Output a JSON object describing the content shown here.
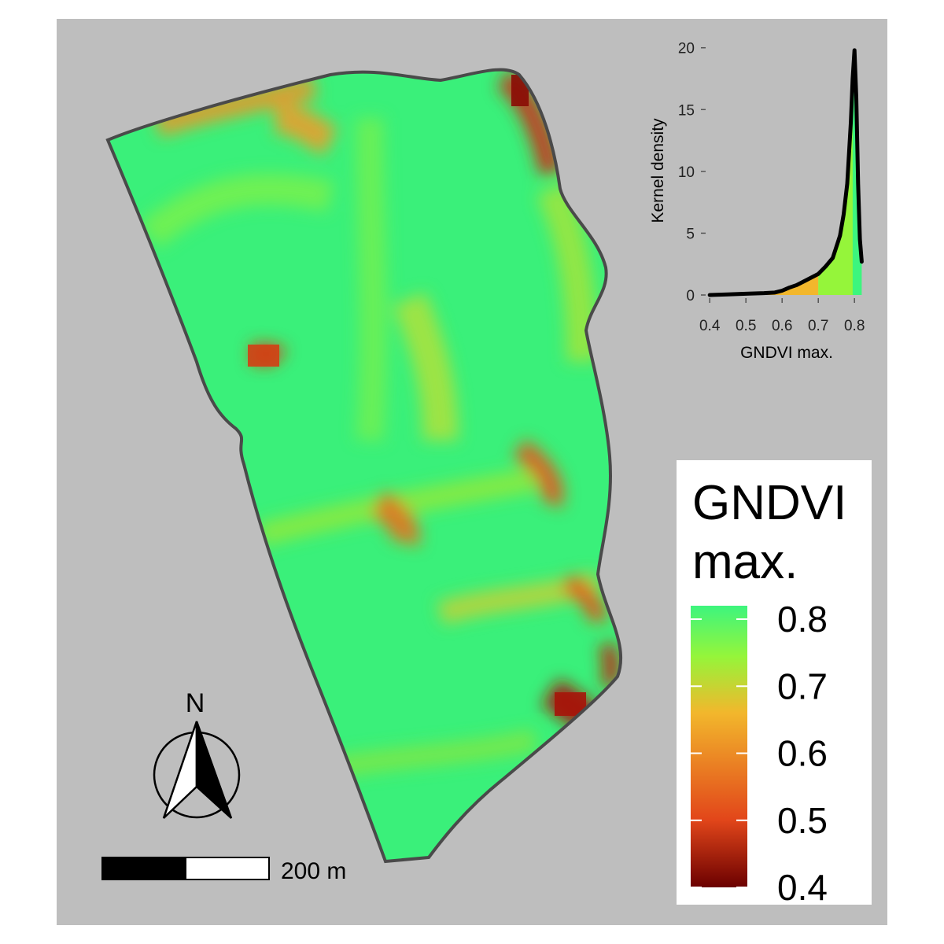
{
  "map": {
    "background_color": "#bebebe",
    "field_fill_main": "#3af07a",
    "boundary_color": "#4a4a4a"
  },
  "legend": {
    "title_line1": "GNDVI",
    "title_line2": "max.",
    "ticks": [
      "0.8",
      "0.7",
      "0.6",
      "0.5",
      "0.4"
    ],
    "tick_values": [
      0.8,
      0.7,
      0.6,
      0.5,
      0.4
    ],
    "range": [
      0.4,
      0.82
    ],
    "colors": [
      "#3df57e",
      "#95f53a",
      "#f2b72c",
      "#e2461a",
      "#6b0000"
    ]
  },
  "scalebar": {
    "label": "200 m"
  },
  "north_arrow": {
    "label": "N"
  },
  "chart_data": {
    "type": "area",
    "xlabel": "GNDVI max.",
    "ylabel": "Kernel density",
    "xlim": [
      0.38,
      0.83
    ],
    "ylim": [
      0,
      21
    ],
    "x_ticks": [
      0.4,
      0.5,
      0.6,
      0.7,
      0.8
    ],
    "x_tick_labels": [
      "0.4",
      "0.5",
      "0.6",
      "0.7",
      "0.8"
    ],
    "y_ticks": [
      0,
      5,
      10,
      15,
      20
    ],
    "y_tick_labels": [
      "0",
      "5",
      "10",
      "15",
      "20"
    ],
    "x": [
      0.4,
      0.45,
      0.5,
      0.55,
      0.58,
      0.6,
      0.62,
      0.64,
      0.66,
      0.68,
      0.7,
      0.72,
      0.74,
      0.76,
      0.77,
      0.78,
      0.79,
      0.795,
      0.8,
      0.805,
      0.81,
      0.815,
      0.82
    ],
    "y": [
      0.0,
      0.05,
      0.1,
      0.15,
      0.2,
      0.35,
      0.6,
      0.8,
      1.1,
      1.4,
      1.7,
      2.3,
      3.0,
      4.8,
      6.5,
      9.0,
      14.0,
      17.5,
      19.8,
      16.0,
      9.0,
      4.5,
      2.7
    ]
  }
}
